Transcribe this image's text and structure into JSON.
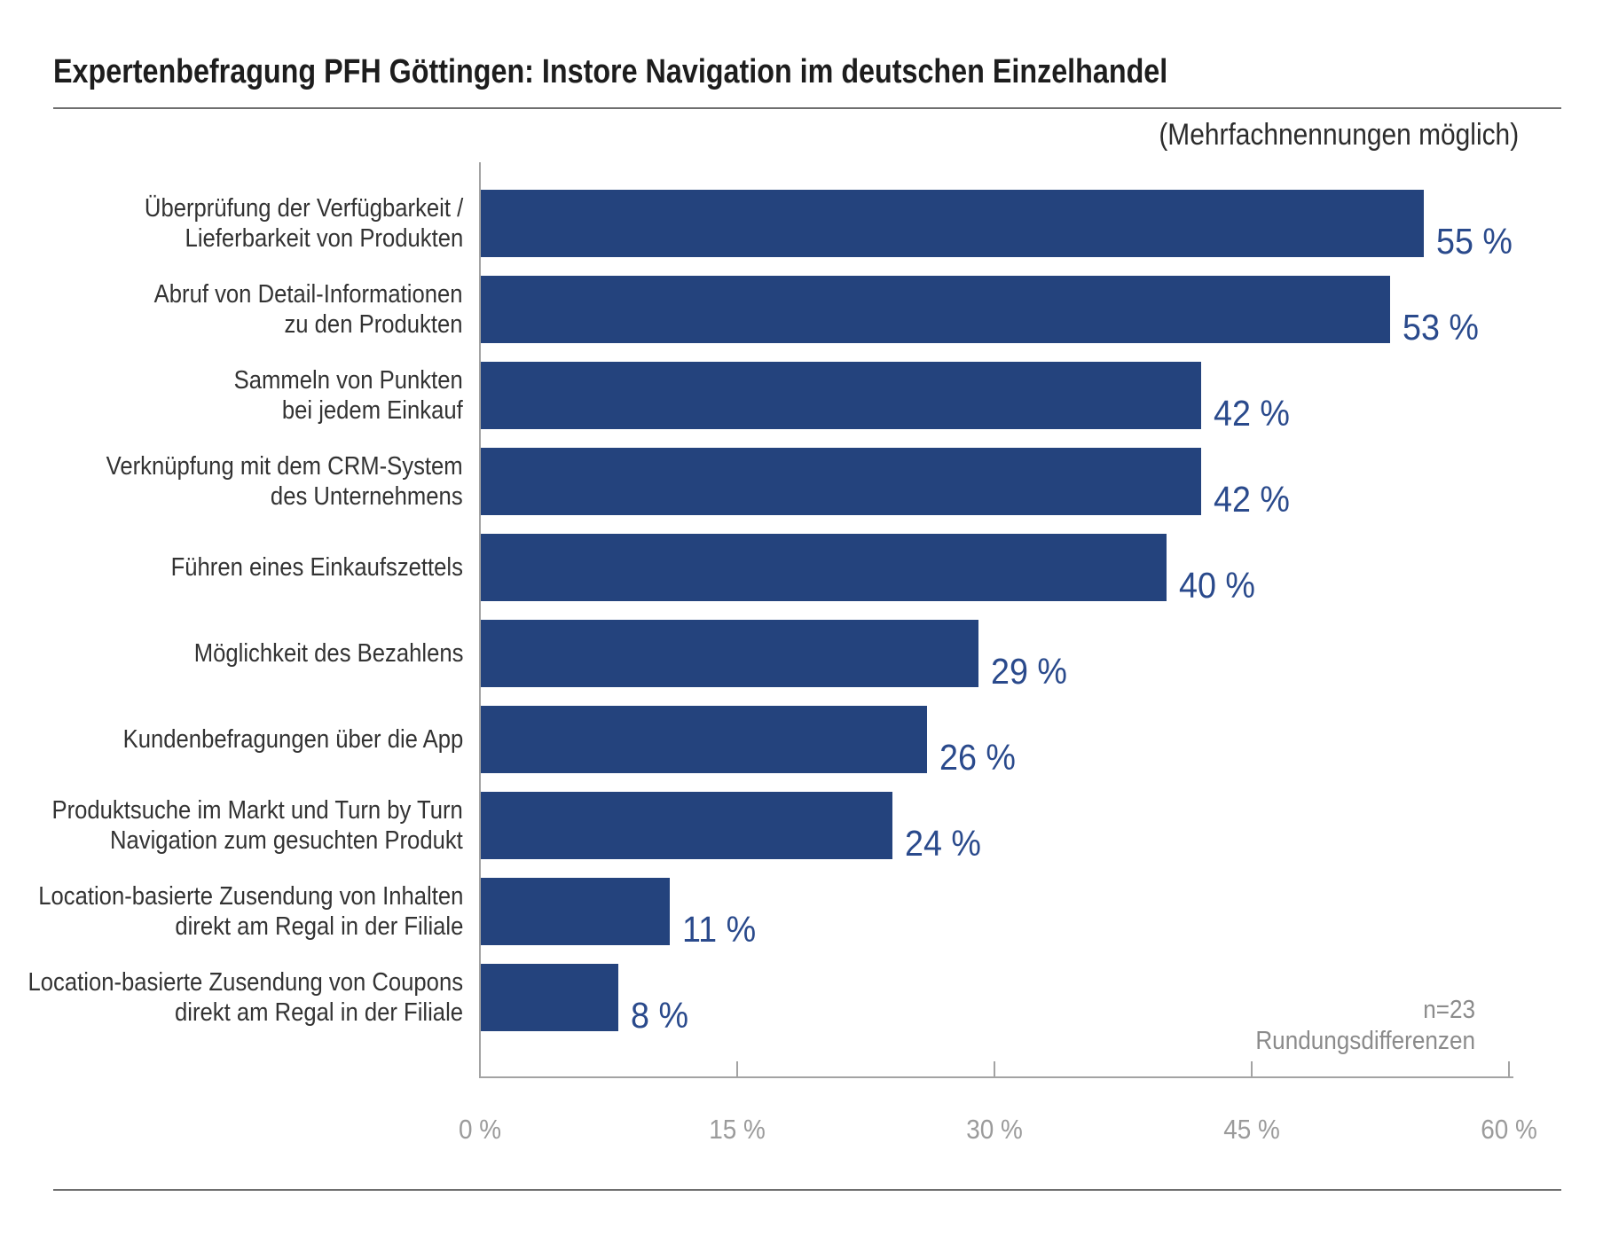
{
  "header": {
    "title": "Expertenbefragung PFH Göttingen: Instore Navigation im deutschen Einzelhandel",
    "subtitle": "(Mehrfachnennungen möglich)"
  },
  "chart_data": {
    "type": "bar",
    "orientation": "horizontal",
    "title": "Expertenbefragung PFH Göttingen: Instore Navigation im deutschen Einzelhandel",
    "subtitle": "(Mehrfachnennungen möglich)",
    "categories": [
      "Überprüfung der Verfügbarkeit / Lieferbarkeit von Produkten",
      "Abruf von Detail-Informationen zu den Produkten",
      "Sammeln von Punkten bei jedem Einkauf",
      "Verknüpfung mit dem CRM-System des Unternehmens",
      "Führen eines Einkaufszettels",
      "Möglichkeit des Bezahlens",
      "Kundenbefragungen über die App",
      "Produktsuche im Markt und Turn by Turn Navigation zum gesuchten Produkt",
      "Location-basierte Zusendung von Inhalten direkt am Regal in der Filiale",
      "Location-basierte Zusendung von Coupons direkt am Regal in der Filiale"
    ],
    "values": [
      55,
      53,
      42,
      42,
      40,
      29,
      26,
      24,
      11,
      8
    ],
    "rows": [
      {
        "line1": "Überprüfung der Verfügbarkeit /",
        "line2": "Lieferbarkeit von Produkten",
        "value": 55,
        "value_label": "55 %"
      },
      {
        "line1": "Abruf von Detail-Informationen",
        "line2": "zu den Produkten",
        "value": 53,
        "value_label": "53 %"
      },
      {
        "line1": "Sammeln von Punkten",
        "line2": "bei jedem Einkauf",
        "value": 42,
        "value_label": "42 %"
      },
      {
        "line1": "Verknüpfung mit dem CRM-System",
        "line2": "des Unternehmens",
        "value": 42,
        "value_label": "42 %"
      },
      {
        "line1": "Führen eines Einkaufszettels",
        "line2": "",
        "value": 40,
        "value_label": "40 %"
      },
      {
        "line1": "Möglichkeit des Bezahlens",
        "line2": "",
        "value": 29,
        "value_label": "29 %"
      },
      {
        "line1": "Kundenbefragungen über die App",
        "line2": "",
        "value": 26,
        "value_label": "26 %"
      },
      {
        "line1": "Produktsuche im Markt und Turn by Turn",
        "line2": "Navigation zum gesuchten Produkt",
        "value": 24,
        "value_label": "24 %"
      },
      {
        "line1": "Location-basierte Zusendung von Inhalten",
        "line2": "direkt am Regal in der Filiale",
        "value": 11,
        "value_label": "11 %"
      },
      {
        "line1": "Location-basierte Zusendung von Coupons",
        "line2": "direkt am Regal in der Filiale",
        "value": 8,
        "value_label": "8 %"
      }
    ],
    "x_tick_labels": [
      "0 %",
      "15 %",
      "30 %",
      "45 %",
      "60 %"
    ],
    "xlim": [
      0,
      60
    ],
    "grid": false,
    "legend": false,
    "bar_color": "#24437d",
    "value_label_color": "#2a4a8c",
    "axis_color": "#a3a3a3"
  },
  "notes": {
    "sample": "n=23",
    "rounding": "Rundungsdifferenzen"
  }
}
